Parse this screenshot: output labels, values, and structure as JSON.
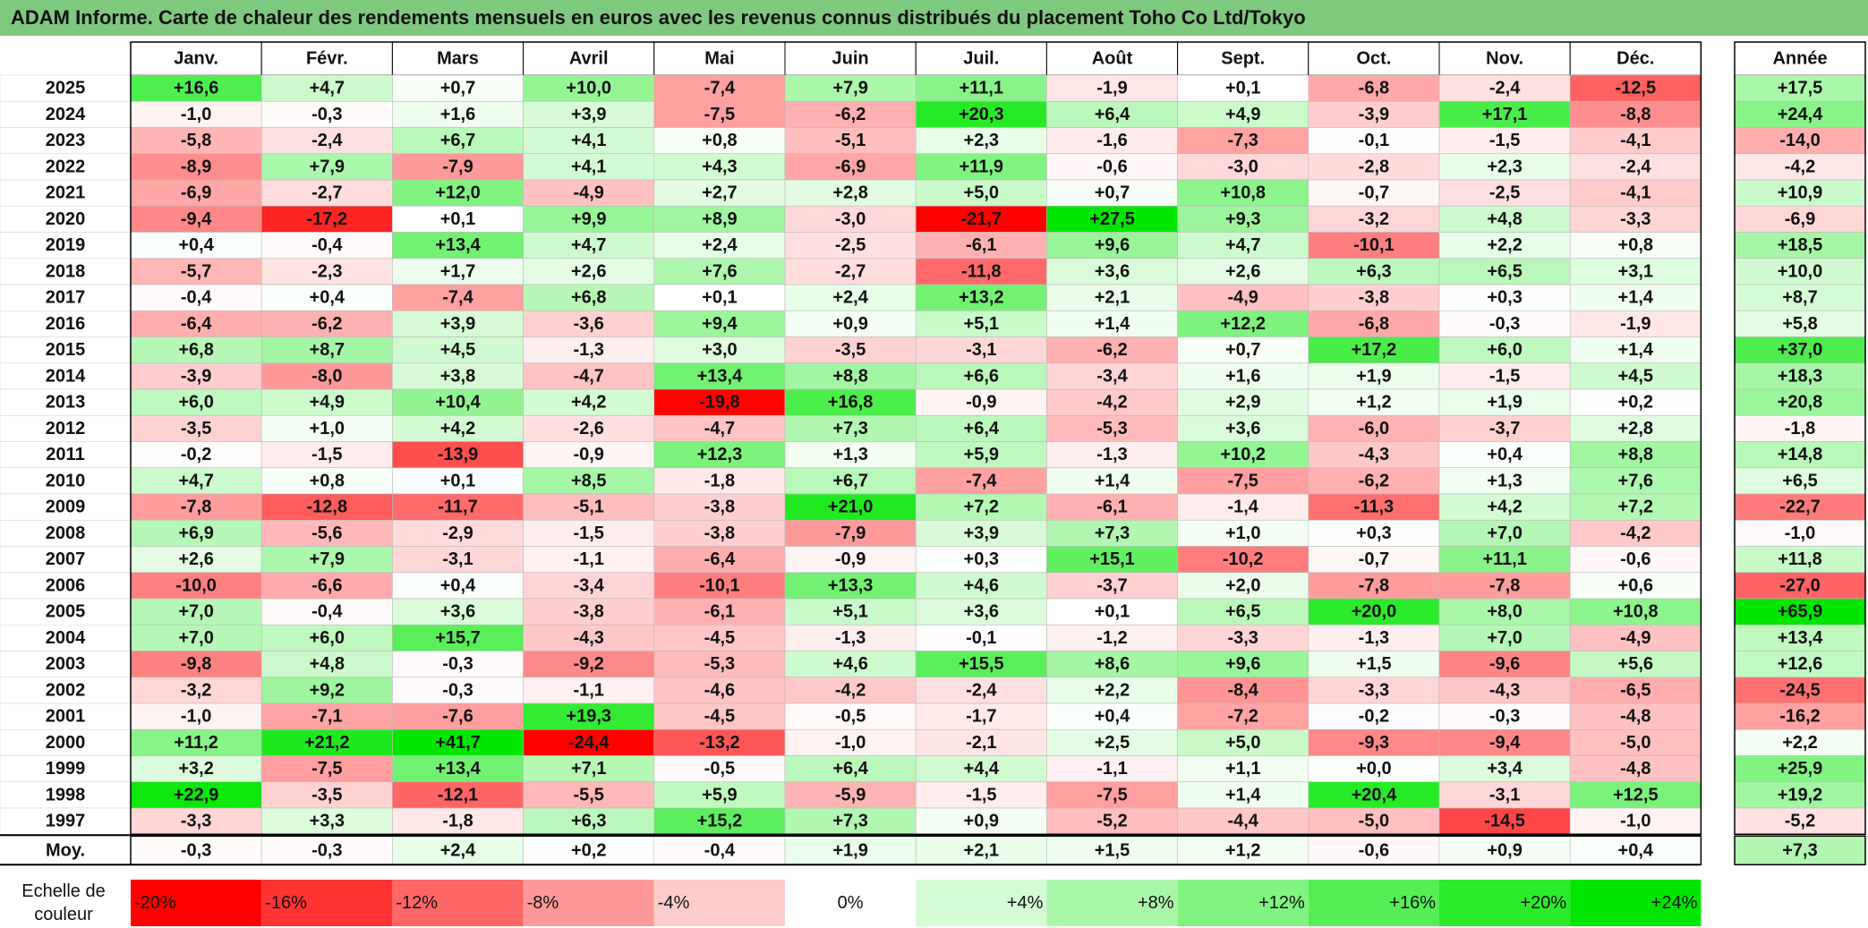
{
  "title": "ADAM Informe. Carte de chaleur des rendements mensuels en euros avec les revenus connus distribués du placement Toho Co Ltd/Tokyo",
  "months": [
    "Janv.",
    "Févr.",
    "Mars",
    "Avril",
    "Mai",
    "Juin",
    "Juil.",
    "Août",
    "Sept.",
    "Oct.",
    "Nov.",
    "Déc."
  ],
  "year_header": "Année",
  "avg_label": "Moy.",
  "scale_label_line1": "Echelle de",
  "scale_label_line2": "couleur",
  "chart_data": {
    "type": "heatmap",
    "unit": "%",
    "rows": [
      {
        "year": "2025",
        "values": [
          "+16,6",
          "+4,7",
          "+0,7",
          "+10,0",
          "-7,4",
          "+7,9",
          "+11,1",
          "-1,9",
          "+0,1",
          "-6,8",
          "-2,4",
          "-12,5"
        ],
        "annual": "+17,5"
      },
      {
        "year": "2024",
        "values": [
          "-1,0",
          "-0,3",
          "+1,6",
          "+3,9",
          "-7,5",
          "-6,2",
          "+20,3",
          "+6,4",
          "+4,9",
          "-3,9",
          "+17,1",
          "-8,8"
        ],
        "annual": "+24,4"
      },
      {
        "year": "2023",
        "values": [
          "-5,8",
          "-2,4",
          "+6,7",
          "+4,1",
          "+0,8",
          "-5,1",
          "+2,3",
          "-1,6",
          "-7,3",
          "-0,1",
          "-1,5",
          "-4,1"
        ],
        "annual": "-14,0"
      },
      {
        "year": "2022",
        "values": [
          "-8,9",
          "+7,9",
          "-7,9",
          "+4,1",
          "+4,3",
          "-6,9",
          "+11,9",
          "-0,6",
          "-3,0",
          "-2,8",
          "+2,3",
          "-2,4"
        ],
        "annual": "-4,2"
      },
      {
        "year": "2021",
        "values": [
          "-6,9",
          "-2,7",
          "+12,0",
          "-4,9",
          "+2,7",
          "+2,8",
          "+5,0",
          "+0,7",
          "+10,8",
          "-0,7",
          "-2,5",
          "-4,1"
        ],
        "annual": "+10,9"
      },
      {
        "year": "2020",
        "values": [
          "-9,4",
          "-17,2",
          "+0,1",
          "+9,9",
          "+8,9",
          "-3,0",
          "-21,7",
          "+27,5",
          "+9,3",
          "-3,2",
          "+4,8",
          "-3,3"
        ],
        "annual": "-6,9"
      },
      {
        "year": "2019",
        "values": [
          "+0,4",
          "-0,4",
          "+13,4",
          "+4,7",
          "+2,4",
          "-2,5",
          "-6,1",
          "+9,6",
          "+4,7",
          "-10,1",
          "+2,2",
          "+0,8"
        ],
        "annual": "+18,5"
      },
      {
        "year": "2018",
        "values": [
          "-5,7",
          "-2,3",
          "+1,7",
          "+2,6",
          "+7,6",
          "-2,7",
          "-11,8",
          "+3,6",
          "+2,6",
          "+6,3",
          "+6,5",
          "+3,1"
        ],
        "annual": "+10,0"
      },
      {
        "year": "2017",
        "values": [
          "-0,4",
          "+0,4",
          "-7,4",
          "+6,8",
          "+0,1",
          "+2,4",
          "+13,2",
          "+2,1",
          "-4,9",
          "-3,8",
          "+0,3",
          "+1,4"
        ],
        "annual": "+8,7"
      },
      {
        "year": "2016",
        "values": [
          "-6,4",
          "-6,2",
          "+3,9",
          "-3,6",
          "+9,4",
          "+0,9",
          "+5,1",
          "+1,4",
          "+12,2",
          "-6,8",
          "-0,3",
          "-1,9"
        ],
        "annual": "+5,8"
      },
      {
        "year": "2015",
        "values": [
          "+6,8",
          "+8,7",
          "+4,5",
          "-1,3",
          "+3,0",
          "-3,5",
          "-3,1",
          "-6,2",
          "+0,7",
          "+17,2",
          "+6,0",
          "+1,4"
        ],
        "annual": "+37,0"
      },
      {
        "year": "2014",
        "values": [
          "-3,9",
          "-8,0",
          "+3,8",
          "-4,7",
          "+13,4",
          "+8,8",
          "+6,6",
          "-3,4",
          "+1,6",
          "+1,9",
          "-1,5",
          "+4,5"
        ],
        "annual": "+18,3"
      },
      {
        "year": "2013",
        "values": [
          "+6,0",
          "+4,9",
          "+10,4",
          "+4,2",
          "-19,8",
          "+16,8",
          "-0,9",
          "-4,2",
          "+2,9",
          "+1,2",
          "+1,9",
          "+0,2"
        ],
        "annual": "+20,8"
      },
      {
        "year": "2012",
        "values": [
          "-3,5",
          "+1,0",
          "+4,2",
          "-2,6",
          "-4,7",
          "+7,3",
          "+6,4",
          "-5,3",
          "+3,6",
          "-6,0",
          "-3,7",
          "+2,8"
        ],
        "annual": "-1,8"
      },
      {
        "year": "2011",
        "values": [
          "-0,2",
          "-1,5",
          "-13,9",
          "-0,9",
          "+12,3",
          "+1,3",
          "+5,9",
          "-1,3",
          "+10,2",
          "-4,3",
          "+0,4",
          "+8,8"
        ],
        "annual": "+14,8"
      },
      {
        "year": "2010",
        "values": [
          "+4,7",
          "+0,8",
          "+0,1",
          "+8,5",
          "-1,8",
          "+6,7",
          "-7,4",
          "+1,4",
          "-7,5",
          "-6,2",
          "+1,3",
          "+7,6"
        ],
        "annual": "+6,5"
      },
      {
        "year": "2009",
        "values": [
          "-7,8",
          "-12,8",
          "-11,7",
          "-5,1",
          "-3,8",
          "+21,0",
          "+7,2",
          "-6,1",
          "-1,4",
          "-11,3",
          "+4,2",
          "+7,2"
        ],
        "annual": "-22,7"
      },
      {
        "year": "2008",
        "values": [
          "+6,9",
          "-5,6",
          "-2,9",
          "-1,5",
          "-3,8",
          "-7,9",
          "+3,9",
          "+7,3",
          "+1,0",
          "+0,3",
          "+7,0",
          "-4,2"
        ],
        "annual": "-1,0"
      },
      {
        "year": "2007",
        "values": [
          "+2,6",
          "+7,9",
          "-3,1",
          "-1,1",
          "-6,4",
          "-0,9",
          "+0,3",
          "+15,1",
          "-10,2",
          "-0,7",
          "+11,1",
          "-0,6"
        ],
        "annual": "+11,8"
      },
      {
        "year": "2006",
        "values": [
          "-10,0",
          "-6,6",
          "+0,4",
          "-3,4",
          "-10,1",
          "+13,3",
          "+4,6",
          "-3,7",
          "+2,0",
          "-7,8",
          "-7,8",
          "+0,6"
        ],
        "annual": "-27,0"
      },
      {
        "year": "2005",
        "values": [
          "+7,0",
          "-0,4",
          "+3,6",
          "-3,8",
          "-6,1",
          "+5,1",
          "+3,6",
          "+0,1",
          "+6,5",
          "+20,0",
          "+8,0",
          "+10,8"
        ],
        "annual": "+65,9"
      },
      {
        "year": "2004",
        "values": [
          "+7,0",
          "+6,0",
          "+15,7",
          "-4,3",
          "-4,5",
          "-1,3",
          "-0,1",
          "-1,2",
          "-3,3",
          "-1,3",
          "+7,0",
          "-4,9"
        ],
        "annual": "+13,4"
      },
      {
        "year": "2003",
        "values": [
          "-9,8",
          "+4,8",
          "-0,3",
          "-9,2",
          "-5,3",
          "+4,6",
          "+15,5",
          "+8,6",
          "+9,6",
          "+1,5",
          "-9,6",
          "+5,6"
        ],
        "annual": "+12,6"
      },
      {
        "year": "2002",
        "values": [
          "-3,2",
          "+9,2",
          "-0,3",
          "-1,1",
          "-4,6",
          "-4,2",
          "-2,4",
          "+2,2",
          "-8,4",
          "-3,3",
          "-4,3",
          "-6,5"
        ],
        "annual": "-24,5"
      },
      {
        "year": "2001",
        "values": [
          "-1,0",
          "-7,1",
          "-7,6",
          "+19,3",
          "-4,5",
          "-0,5",
          "-1,7",
          "+0,4",
          "-7,2",
          "-0,2",
          "-0,3",
          "-4,8"
        ],
        "annual": "-16,2"
      },
      {
        "year": "2000",
        "values": [
          "+11,2",
          "+21,2",
          "+41,7",
          "-24,4",
          "-13,2",
          "-1,0",
          "-2,1",
          "+2,5",
          "+5,0",
          "-9,3",
          "-9,4",
          "-5,0"
        ],
        "annual": "+2,2"
      },
      {
        "year": "1999",
        "values": [
          "+3,2",
          "-7,5",
          "+13,4",
          "+7,1",
          "-0,5",
          "+6,4",
          "+4,4",
          "-1,1",
          "+1,1",
          "+0,0",
          "+3,4",
          "-4,8"
        ],
        "annual": "+25,9"
      },
      {
        "year": "1998",
        "values": [
          "+22,9",
          "-3,5",
          "-12,1",
          "-5,5",
          "+5,9",
          "-5,9",
          "-1,5",
          "-7,5",
          "+1,4",
          "+20,4",
          "-3,1",
          "+12,5"
        ],
        "annual": "+19,2"
      },
      {
        "year": "1997",
        "values": [
          "-3,3",
          "+3,3",
          "-1,8",
          "+6,3",
          "+15,2",
          "+7,3",
          "+0,9",
          "-5,2",
          "-4,4",
          "-5,0",
          "-14,5",
          "-1,0"
        ],
        "annual": "-5,2"
      }
    ],
    "average": {
      "values": [
        "-0,3",
        "-0,3",
        "+2,4",
        "+0,2",
        "-0,4",
        "+1,9",
        "+2,1",
        "+1,5",
        "+1,2",
        "-0,6",
        "+0,9",
        "+0,4"
      ],
      "annual": "+7,3"
    },
    "color_scale": {
      "labels": [
        "-20%",
        "-16%",
        "-12%",
        "-8%",
        "-4%",
        "0%",
        "+4%",
        "+8%",
        "+12%",
        "+16%",
        "+20%",
        "+24%"
      ],
      "values": [
        -20,
        -16,
        -12,
        -8,
        -4,
        0,
        4,
        8,
        12,
        16,
        20,
        24
      ]
    },
    "colors": {
      "negative_max": "#ff0000",
      "neutral": "#ffffff",
      "positive_max": "#00e600",
      "title_bg": "#7fc97f"
    }
  }
}
